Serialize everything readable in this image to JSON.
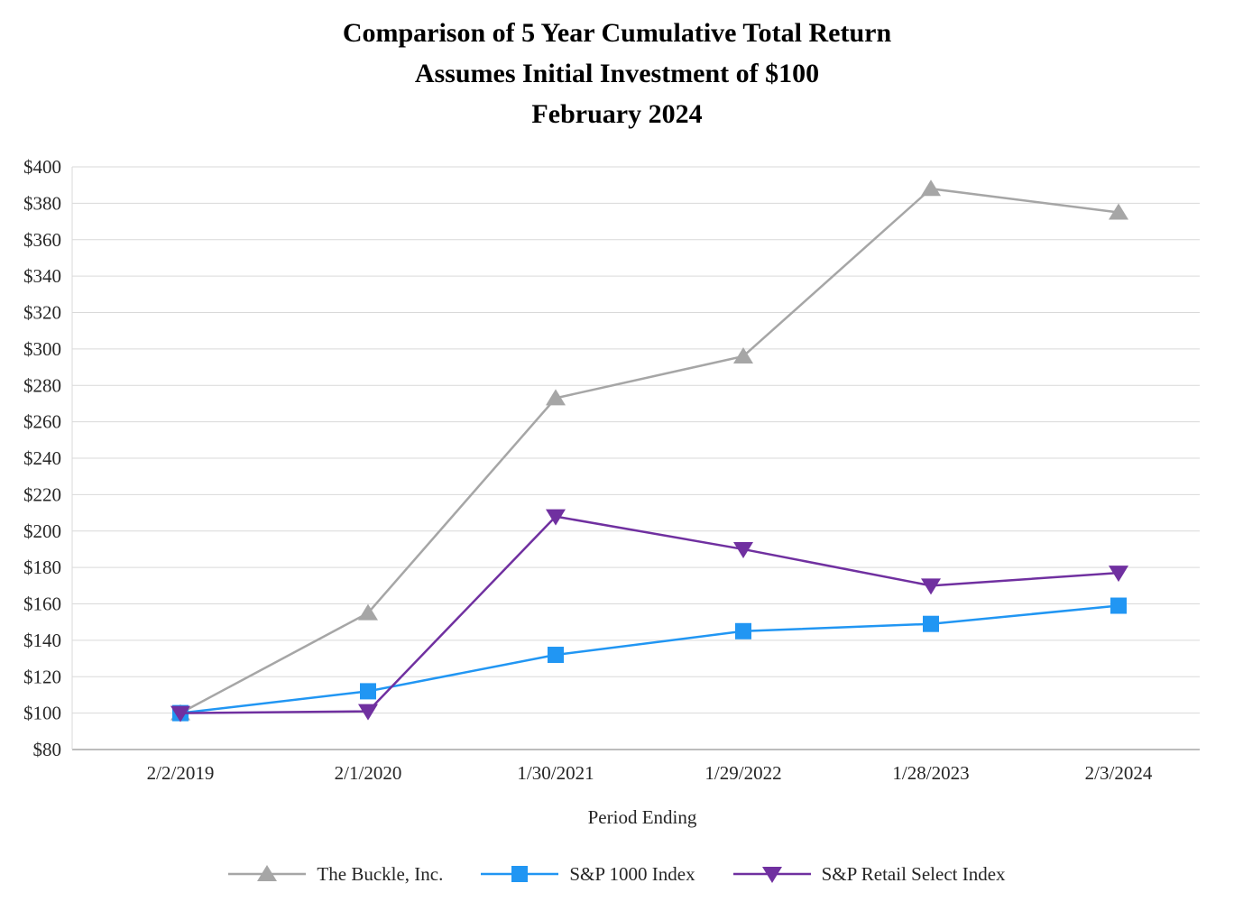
{
  "title": {
    "line1": "Comparison of 5 Year Cumulative Total Return",
    "line2": "Assumes Initial Investment of $100",
    "line3": "February 2024"
  },
  "chart_data": {
    "type": "line",
    "categories": [
      "2/2/2019",
      "2/1/2020",
      "1/30/2021",
      "1/29/2022",
      "1/28/2023",
      "2/3/2024"
    ],
    "series": [
      {
        "name": "The Buckle, Inc.",
        "marker": "triangle-up",
        "color": "#a6a6a6",
        "values": [
          100,
          155,
          273,
          296,
          388,
          375
        ]
      },
      {
        "name": "S&P 1000 Index",
        "marker": "square",
        "color": "#2196f3",
        "values": [
          100,
          112,
          132,
          145,
          149,
          159
        ]
      },
      {
        "name": "S&P Retail Select Index",
        "marker": "triangle-down",
        "color": "#7030a0",
        "values": [
          100,
          101,
          208,
          190,
          170,
          177
        ]
      }
    ],
    "xlabel": "Period Ending",
    "ylabel": "",
    "ylim": [
      80,
      400
    ],
    "ytick_step": 20,
    "ytick_prefix": "$",
    "grid": "horizontal",
    "gridline_color": "#d9d9d9",
    "axis_color": "#a6a6a6",
    "legend_position": "bottom"
  }
}
